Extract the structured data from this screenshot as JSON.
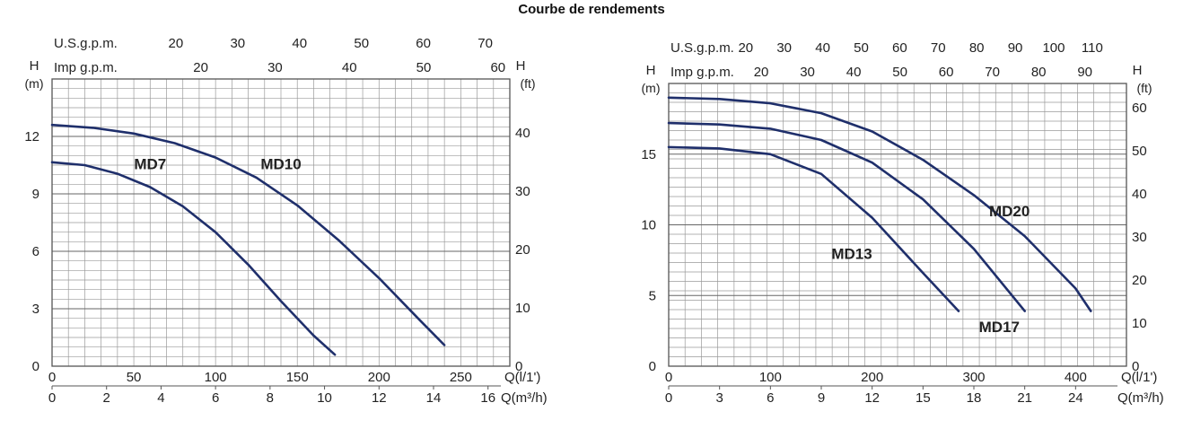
{
  "title": "Courbe de rendements",
  "colors": {
    "curve": "#1f2f6b",
    "grid": "#9a9a9a",
    "label": "#2b3a87",
    "frame": "#555555"
  },
  "chart_data": [
    {
      "type": "line",
      "title": "",
      "axis_left_unit_letter": "H",
      "axis_left_unit": "(m)",
      "axis_right_unit_letter": "H",
      "axis_right_unit": "(ft)",
      "top_axis_1_label": "U.S.g.p.m.",
      "top_axis_2_label": "Imp g.p.m.",
      "bottom_axis_1_label": "Q(l/1')",
      "bottom_axis_2_label": "Q(m³/h)",
      "xlim": [
        0,
        280
      ],
      "ylim": [
        0,
        15
      ],
      "ylim_ft": [
        0,
        49.2
      ],
      "y_ticks": [
        0,
        3,
        6,
        9,
        12
      ],
      "y_ft_ticks": [
        0,
        10,
        20,
        30,
        40
      ],
      "x_ticks_lpm": [
        0,
        50,
        100,
        150,
        200,
        250
      ],
      "x_ticks_m3h": [
        0,
        2,
        4,
        6,
        8,
        10,
        12,
        14,
        16
      ],
      "top_ticks_usgpm": [
        20,
        30,
        40,
        50,
        60,
        70
      ],
      "top_ticks_impgpm": [
        20,
        30,
        40,
        50,
        60
      ],
      "series": [
        {
          "name": "MD7",
          "label_at": [
            60,
            10.3
          ],
          "x": [
            0,
            20,
            40,
            60,
            80,
            100,
            120,
            140,
            160,
            173
          ],
          "y": [
            10.65,
            10.5,
            10.05,
            9.35,
            8.35,
            7.0,
            5.3,
            3.4,
            1.6,
            0.6
          ]
        },
        {
          "name": "MD10",
          "label_at": [
            140,
            10.3
          ],
          "x": [
            0,
            25,
            50,
            75,
            100,
            125,
            150,
            175,
            200,
            225,
            240
          ],
          "y": [
            12.6,
            12.45,
            12.15,
            11.65,
            10.9,
            9.85,
            8.4,
            6.6,
            4.6,
            2.4,
            1.1
          ]
        }
      ]
    },
    {
      "type": "line",
      "title": "",
      "axis_left_unit_letter": "H",
      "axis_left_unit": "(m)",
      "axis_right_unit_letter": "H",
      "axis_right_unit": "(ft)",
      "top_axis_1_label": "U.S.g.p.m.",
      "top_axis_2_label": "Imp g.p.m.",
      "bottom_axis_1_label": "Q(l/1')",
      "bottom_axis_2_label": "Q(m³/h)",
      "xlim": [
        0,
        450
      ],
      "ylim": [
        0,
        20
      ],
      "ylim_ft": [
        0,
        65.6
      ],
      "y_ticks": [
        0,
        5,
        10,
        15
      ],
      "y_ft_ticks": [
        0,
        10,
        20,
        30,
        40,
        50,
        60
      ],
      "x_ticks_lpm": [
        0,
        100,
        200,
        300,
        400
      ],
      "x_ticks_m3h": [
        0,
        3,
        6,
        9,
        12,
        15,
        18,
        21,
        24
      ],
      "top_ticks_usgpm": [
        20,
        30,
        40,
        50,
        60,
        70,
        80,
        90,
        100,
        110
      ],
      "top_ticks_impgpm": [
        20,
        30,
        40,
        50,
        60,
        70,
        80,
        90
      ],
      "series": [
        {
          "name": "MD13",
          "label_at": [
            180,
            7.6
          ],
          "x": [
            0,
            50,
            100,
            150,
            200,
            250,
            285
          ],
          "y": [
            15.5,
            15.4,
            15.0,
            13.6,
            10.5,
            6.6,
            3.9
          ]
        },
        {
          "name": "MD17",
          "label_at": [
            325,
            2.4
          ],
          "x": [
            0,
            50,
            100,
            150,
            200,
            250,
            300,
            350
          ],
          "y": [
            17.2,
            17.1,
            16.8,
            16.0,
            14.4,
            11.8,
            8.3,
            3.9
          ]
        },
        {
          "name": "MD20",
          "label_at": [
            335,
            10.6
          ],
          "x": [
            0,
            50,
            100,
            150,
            200,
            250,
            300,
            350,
            400,
            415
          ],
          "y": [
            19.0,
            18.9,
            18.6,
            17.9,
            16.6,
            14.6,
            12.1,
            9.2,
            5.5,
            3.9
          ]
        }
      ]
    }
  ]
}
